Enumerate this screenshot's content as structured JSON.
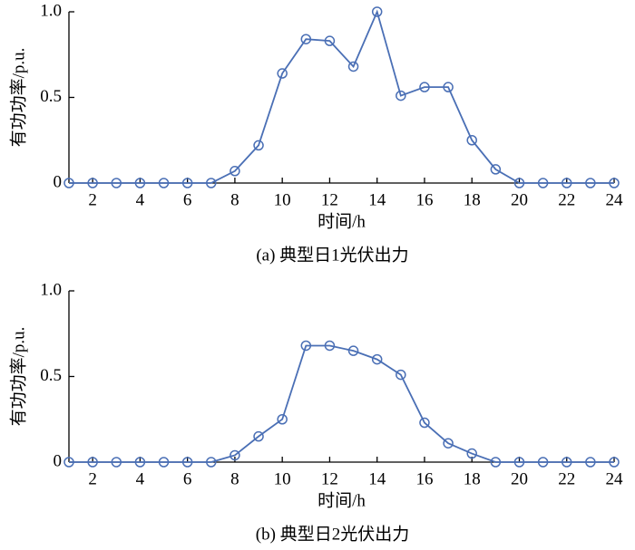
{
  "chart_data": [
    {
      "type": "line",
      "y_label": "有功功率/p.u.",
      "x_label": "时间/h",
      "caption": "(a) 典型日1光伏出力",
      "x": [
        1,
        2,
        3,
        4,
        5,
        6,
        7,
        8,
        9,
        10,
        11,
        12,
        13,
        14,
        15,
        16,
        17,
        18,
        19,
        20,
        21,
        22,
        23,
        24
      ],
      "series": [
        {
          "color": "#4a6fb5",
          "values": [
            0,
            0,
            0,
            0,
            0,
            0,
            0,
            0.07,
            0.22,
            0.64,
            0.84,
            0.83,
            0.68,
            1.0,
            0.51,
            0.56,
            0.56,
            0.25,
            0.08,
            0,
            0,
            0,
            0,
            0
          ]
        }
      ],
      "xlim": [
        1,
        24
      ],
      "xticks": [
        2,
        4,
        6,
        8,
        10,
        12,
        14,
        16,
        18,
        20,
        22,
        24
      ],
      "ylim": [
        0,
        1
      ],
      "yticks": [
        0,
        0.5,
        {
          "value": 1,
          "label": "1.0"
        }
      ]
    },
    {
      "type": "line",
      "y_label": "有功功率/p.u.",
      "x_label": "时间/h",
      "caption": "(b) 典型日2光伏出力",
      "x": [
        1,
        2,
        3,
        4,
        5,
        6,
        7,
        8,
        9,
        10,
        11,
        12,
        13,
        14,
        15,
        16,
        17,
        18,
        19,
        20,
        21,
        22,
        23,
        24
      ],
      "series": [
        {
          "color": "#4a6fb5",
          "values": [
            0,
            0,
            0,
            0,
            0,
            0,
            0,
            0.04,
            0.15,
            0.25,
            0.68,
            0.68,
            0.65,
            0.6,
            0.51,
            0.23,
            0.11,
            0.05,
            0,
            0,
            0,
            0,
            0,
            0
          ]
        }
      ],
      "xlim": [
        1,
        24
      ],
      "xticks": [
        2,
        4,
        6,
        8,
        10,
        12,
        14,
        16,
        18,
        20,
        22,
        24
      ],
      "ylim": [
        0,
        1
      ],
      "yticks": [
        0,
        0.5,
        {
          "value": 1,
          "label": "1.0"
        }
      ]
    }
  ]
}
